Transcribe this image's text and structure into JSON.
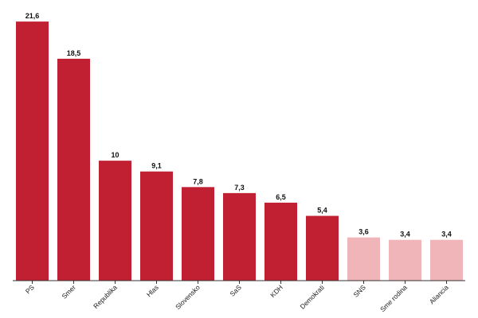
{
  "chart_data": {
    "type": "bar",
    "categories": [
      "PS",
      "Smer",
      "Republika",
      "Hlas",
      "Slovensko",
      "SaS",
      "KDH",
      "Demokrati",
      "SNS",
      "Sme rodina",
      "Aliancia"
    ],
    "values": [
      21.6,
      18.5,
      10,
      9.1,
      7.8,
      7.3,
      6.5,
      5.4,
      3.6,
      3.4,
      3.4
    ],
    "value_labels": [
      "21,6",
      "18,5",
      "10",
      "9,1",
      "7,8",
      "7,3",
      "6,5",
      "5,4",
      "3,6",
      "3,4",
      "3,4"
    ],
    "ylim": [
      0,
      23
    ],
    "grid": false,
    "legend": "none",
    "colors": {
      "primary": "#c02032",
      "secondary": "#efb5b9",
      "axis": "#333333"
    },
    "bar_color_groups": [
      "primary",
      "primary",
      "primary",
      "primary",
      "primary",
      "primary",
      "primary",
      "primary",
      "secondary",
      "secondary",
      "secondary"
    ]
  }
}
